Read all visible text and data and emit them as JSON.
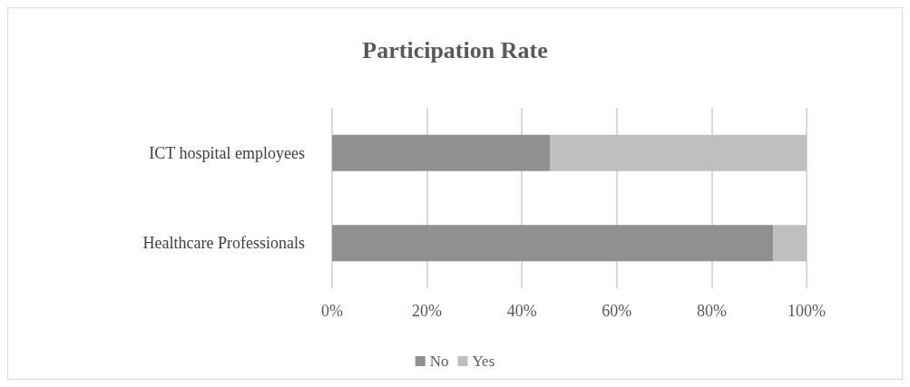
{
  "chart_data": {
    "type": "bar",
    "title": "Participation Rate",
    "orientation": "horizontal",
    "stacked": true,
    "categories": [
      "ICT hospital employees",
      "Healthcare Professionals"
    ],
    "series": [
      {
        "name": "No",
        "color": "#909090",
        "values": [
          46,
          93
        ]
      },
      {
        "name": "Yes",
        "color": "#bfbfbf",
        "values": [
          54,
          7
        ]
      }
    ],
    "xlim": [
      0,
      100
    ],
    "xticks": [
      {
        "value": 0,
        "label": "0%"
      },
      {
        "value": 20,
        "label": "20%"
      },
      {
        "value": 40,
        "label": "40%"
      },
      {
        "value": 60,
        "label": "60%"
      },
      {
        "value": 80,
        "label": "80%"
      },
      {
        "value": 100,
        "label": "100%"
      }
    ],
    "grid": "x",
    "legend": "bottom"
  }
}
